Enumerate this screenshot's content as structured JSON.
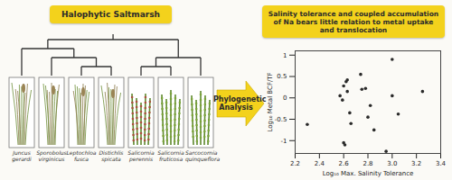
{
  "header_left": "Halophytic Saltmarsh",
  "tree": {
    "children": [
      {
        "children": [
          {
            "name": "Juncus gerardi"
          },
          {
            "children": [
              {
                "name": "Sporobolus virginicus"
              },
              {
                "children": [
                  {
                    "name": "Leptochloa fusca"
                  },
                  {
                    "name": "Distichlis spicata"
                  }
                ]
              }
            ]
          }
        ]
      },
      {
        "children": [
          {
            "children": [
              {
                "name": "Salicornia perennis"
              },
              {
                "name": "Salicornia fruticosa"
              }
            ]
          },
          {
            "name": "Sarcocornia quinqueflora"
          }
        ]
      }
    ]
  },
  "arrow_label": "Phylogenetic Analysis",
  "header_right": "Salinity tolerance and coupled accumulation of Na bears little relation to metal uptake and translocation",
  "chart_data": {
    "type": "scatter",
    "x": [
      2.3,
      2.57,
      2.59,
      2.6,
      2.6,
      2.61,
      2.62,
      2.63,
      2.63,
      2.65,
      2.66,
      2.74,
      2.75,
      2.78,
      2.8,
      2.82,
      2.85,
      2.95,
      3.0,
      3.0,
      3.05,
      3.25
    ],
    "values": [
      -0.62,
      0.05,
      -0.05,
      0.28,
      -1.05,
      -1.1,
      0.38,
      0.15,
      0.42,
      -0.35,
      -0.6,
      0.55,
      0.2,
      0.22,
      -0.45,
      -0.18,
      -0.75,
      -1.25,
      0.9,
      0.05,
      -0.38,
      0.15
    ],
    "color": "#2a2a2a",
    "marker": "circle",
    "xlabel": "Log₁₀ Max. Salinity Tolerance",
    "ylabel": "Log₁₀ Metal BCF/TF",
    "xlim": [
      2.2,
      3.4
    ],
    "ylim": [
      -1.3,
      1.1
    ],
    "xticks": [
      2.2,
      2.4,
      2.6,
      2.8,
      {
        "value": 3,
        "label": "3.0"
      },
      3.2,
      3.4
    ],
    "yticks": [
      -1,
      -0.5,
      0,
      0.5,
      1
    ],
    "grid": false
  }
}
